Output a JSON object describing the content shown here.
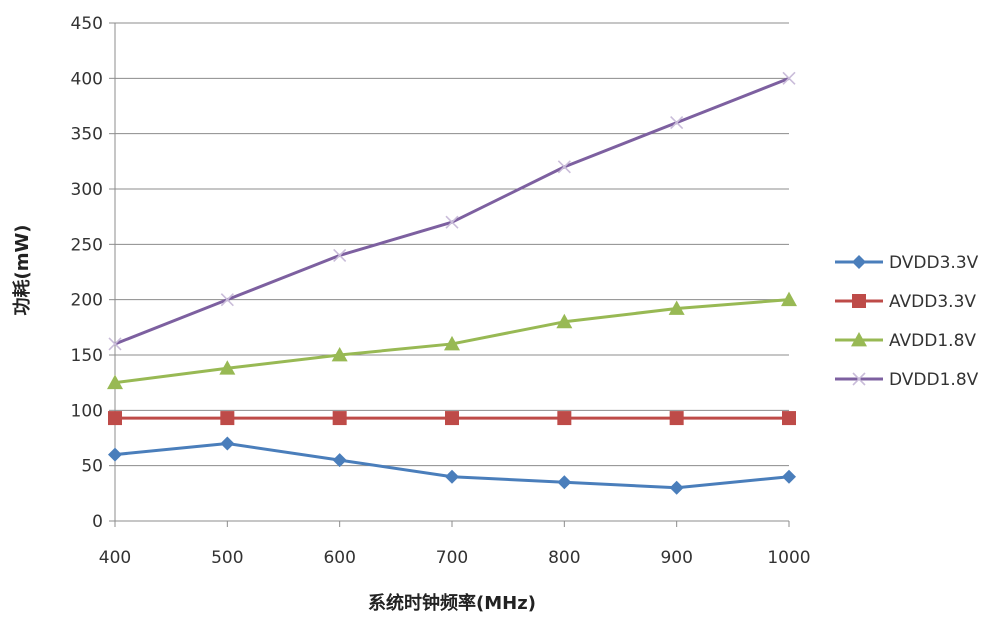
{
  "chart_data": {
    "type": "line",
    "title": "",
    "xlabel": "系统时钟频率(MHz)",
    "ylabel": "功耗(mW)",
    "x": [
      400,
      500,
      600,
      700,
      800,
      900,
      1000
    ],
    "ylim": [
      0,
      450
    ],
    "yticks": [
      0,
      50,
      100,
      150,
      200,
      250,
      300,
      350,
      400,
      450
    ],
    "grid": "horizontal",
    "legend": "right",
    "series": [
      {
        "name": "DVDD3.3V",
        "color": "#4a7ebb",
        "marker": "diamond",
        "values": [
          60,
          70,
          55,
          40,
          35,
          30,
          40
        ]
      },
      {
        "name": "AVDD3.3V",
        "color": "#be4b48",
        "marker": "square",
        "values": [
          93,
          93,
          93,
          93,
          93,
          93,
          93
        ]
      },
      {
        "name": "AVDD1.8V",
        "color": "#98b954",
        "marker": "triangle",
        "values": [
          125,
          138,
          150,
          160,
          180,
          192,
          200
        ]
      },
      {
        "name": "DVDD1.8V",
        "color": "#7d60a0",
        "marker": "x",
        "values": [
          160,
          200,
          240,
          270,
          320,
          360,
          400
        ]
      }
    ]
  }
}
